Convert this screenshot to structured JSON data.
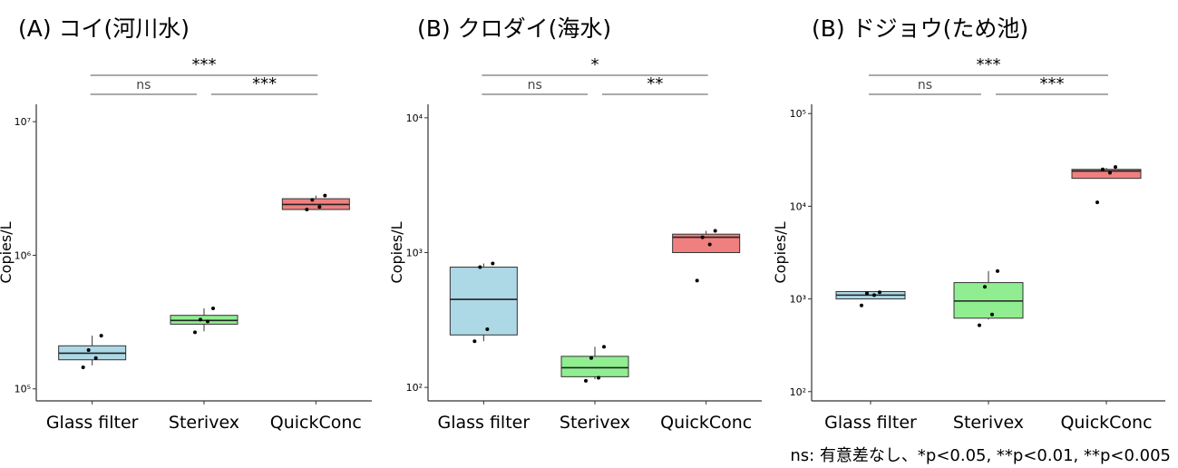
{
  "chart_data": [
    {
      "type": "box",
      "title": "(A) コイ(河川水)",
      "ylabel": "Copies/L",
      "yscale": "log",
      "ylim_log10": [
        4.91,
        7.13
      ],
      "yticks": [
        {
          "v": 5,
          "label": "10⁵"
        },
        {
          "v": 6,
          "label": "10⁶"
        },
        {
          "v": 7,
          "label": "10⁷"
        }
      ],
      "categories": [
        "Glass filter",
        "Sterivex",
        "QuickConc"
      ],
      "boxes": [
        {
          "name": "Glass filter",
          "color": "#add8e6",
          "whisker_low": 150000,
          "q1": 165000,
          "median": 185000,
          "q3": 210000,
          "whisker_high": 250000,
          "points": [
            145000,
            170000,
            195000,
            250000
          ]
        },
        {
          "name": "Sterivex",
          "color": "#90ee90",
          "whisker_low": 270000,
          "q1": 305000,
          "median": 325000,
          "q3": 355000,
          "whisker_high": 400000,
          "points": [
            265000,
            320000,
            330000,
            400000
          ]
        },
        {
          "name": "QuickConc",
          "color": "#f08080",
          "whisker_low": 2200000,
          "q1": 2200000,
          "median": 2400000,
          "q3": 2650000,
          "whisker_high": 2800000,
          "points": [
            2200000,
            2300000,
            2600000,
            2800000
          ]
        }
      ],
      "comparisons": [
        {
          "from": 1,
          "to": 3,
          "label": "***"
        },
        {
          "from": 1,
          "to": 2,
          "label": "ns"
        },
        {
          "from": 2,
          "to": 3,
          "label": "***"
        }
      ]
    },
    {
      "type": "box",
      "title": "(B) クロダイ(海水)",
      "ylabel": "Copies/L",
      "yscale": "log",
      "ylim_log10": [
        1.9,
        4.1
      ],
      "yticks": [
        {
          "v": 2,
          "label": "10²"
        },
        {
          "v": 3,
          "label": "10³"
        },
        {
          "v": 4,
          "label": "10⁴"
        }
      ],
      "categories": [
        "Glass filter",
        "Sterivex",
        "QuickConc"
      ],
      "boxes": [
        {
          "name": "Glass filter",
          "color": "#add8e6",
          "whisker_low": 220,
          "q1": 245,
          "median": 450,
          "q3": 780,
          "whisker_high": 830,
          "points": [
            220,
            270,
            780,
            830
          ]
        },
        {
          "name": "Sterivex",
          "color": "#90ee90",
          "whisker_low": 115,
          "q1": 120,
          "median": 140,
          "q3": 170,
          "whisker_high": 200,
          "points": [
            112,
            118,
            165,
            200
          ]
        },
        {
          "name": "QuickConc",
          "color": "#f08080",
          "whisker_low": 1000,
          "q1": 1000,
          "median": 1300,
          "q3": 1370,
          "whisker_high": 1450,
          "points": [
            620,
            1150,
            1300,
            1450
          ]
        }
      ],
      "comparisons": [
        {
          "from": 1,
          "to": 3,
          "label": "*"
        },
        {
          "from": 1,
          "to": 2,
          "label": "ns"
        },
        {
          "from": 2,
          "to": 3,
          "label": "**"
        }
      ]
    },
    {
      "type": "box",
      "title": "(B) ドジョウ(ため池)",
      "ylabel": "Copies/L",
      "yscale": "log",
      "ylim_log10": [
        1.9,
        5.1
      ],
      "yticks": [
        {
          "v": 2,
          "label": "10²"
        },
        {
          "v": 3,
          "label": "10³"
        },
        {
          "v": 4,
          "label": "10⁴"
        },
        {
          "v": 5,
          "label": "10⁵"
        }
      ],
      "categories": [
        "Glass filter",
        "Sterivex",
        "QuickConc"
      ],
      "boxes": [
        {
          "name": "Glass filter",
          "color": "#add8e6",
          "whisker_low": 1000,
          "q1": 1000,
          "median": 1100,
          "q3": 1200,
          "whisker_high": 1200,
          "points": [
            850,
            1100,
            1150,
            1180
          ]
        },
        {
          "name": "Sterivex",
          "color": "#90ee90",
          "whisker_low": 600,
          "q1": 620,
          "median": 950,
          "q3": 1500,
          "whisker_high": 2000,
          "points": [
            520,
            680,
            1350,
            2000
          ]
        },
        {
          "name": "QuickConc",
          "color": "#f08080",
          "whisker_low": 20000,
          "q1": 20000,
          "median": 24000,
          "q3": 25000,
          "whisker_high": 26000,
          "points": [
            11000,
            23000,
            25000,
            26500
          ]
        }
      ],
      "comparisons": [
        {
          "from": 1,
          "to": 3,
          "label": "***"
        },
        {
          "from": 1,
          "to": 2,
          "label": "ns"
        },
        {
          "from": 2,
          "to": 3,
          "label": "***"
        }
      ]
    }
  ],
  "footnote": "ns: 有意差なし、*p<0.05, **p<0.01, **p<0.005"
}
